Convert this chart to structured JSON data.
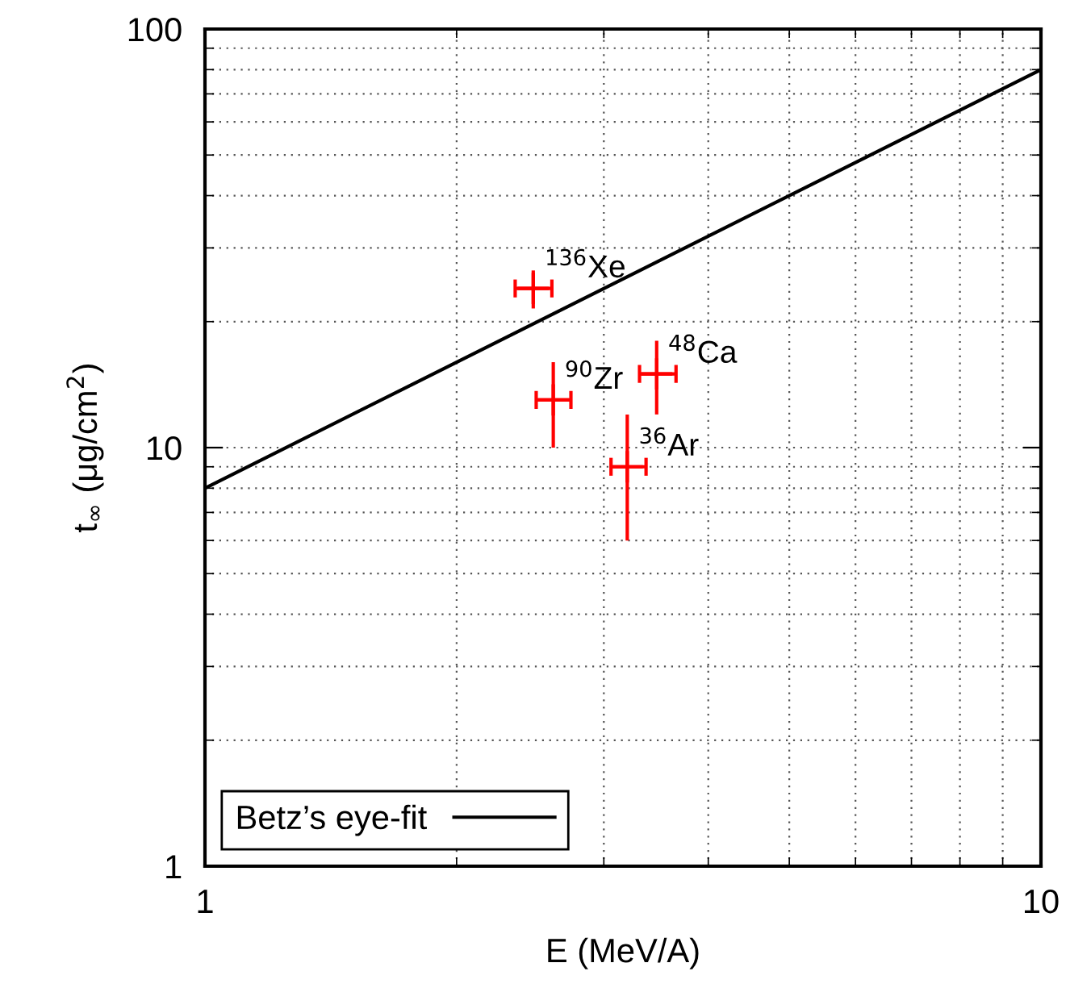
{
  "chart_data": {
    "type": "scatter",
    "xlabel": "E (MeV/A)",
    "ylabel": "t$_{∞}$ (μg/cm$^{2}$)",
    "log": "xy",
    "xlim": [
      1,
      10
    ],
    "ylim": [
      1,
      100
    ],
    "xticks": [
      1,
      10
    ],
    "yticks": [
      1,
      10,
      100
    ],
    "grid": true,
    "legend": "bottom left",
    "marker": "none",
    "series": [
      {
        "name": "Betz’s eye-fit",
        "type": "line",
        "color": "#000000",
        "line_style": "solid",
        "x": [
          1,
          10
        ],
        "values": [
          8,
          80
        ]
      },
      {
        "marker": "cross",
        "color": "#ff0000",
        "x": [
          2.47,
          2.61,
          3.47,
          3.2
        ],
        "values": [
          24,
          13,
          15,
          9
        ],
        "errors": [
          [
            21.5,
            26.5
          ],
          [
            10,
            16
          ],
          [
            12,
            18
          ],
          [
            6,
            12
          ]
        ],
        "xerrors": [
          [
            2.35,
            2.6
          ],
          [
            2.49,
            2.74
          ],
          [
            3.31,
            3.66
          ],
          [
            3.06,
            3.37
          ]
        ]
      }
    ],
    "annotations": [
      {
        "text": "$^{136}$Xe",
        "x": 2.47,
        "y": 24
      },
      {
        "text": "$^{90}$Zr",
        "x": 2.61,
        "y": 13
      },
      {
        "text": "$^{48}$Ca",
        "x": 3.47,
        "y": 15
      },
      {
        "text": "$^{36}$Ar",
        "x": 3.2,
        "y": 9
      }
    ]
  }
}
